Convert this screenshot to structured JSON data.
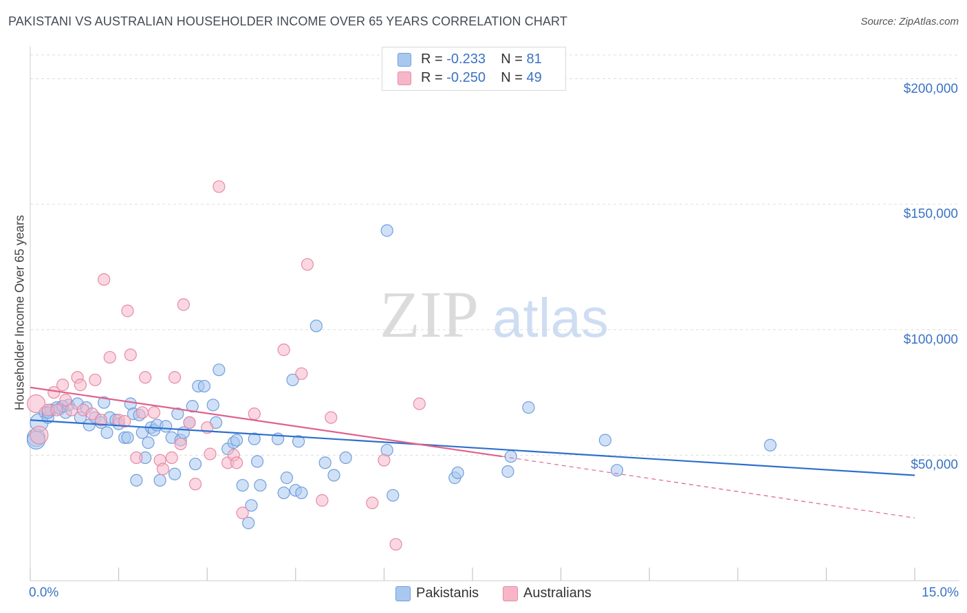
{
  "title": "PAKISTANI VS AUSTRALIAN HOUSEHOLDER INCOME OVER 65 YEARS CORRELATION CHART",
  "source": "Source: ZipAtlas.com",
  "watermark": {
    "zip": "ZIP",
    "atlas": "atlas"
  },
  "legend": {
    "rows": [
      {
        "r_label": "R = ",
        "r_value": "-0.233",
        "n_label": "N = ",
        "n_value": "81",
        "color": "#a9c8f0"
      },
      {
        "r_label": "R = ",
        "r_value": "-0.250",
        "n_label": "N = ",
        "n_value": "49",
        "color": "#f7b6c8"
      }
    ]
  },
  "colors": {
    "blue_fill": "#a9c8f0",
    "blue_stroke": "#6f9edb",
    "blue_line": "#2e6fcc",
    "pink_fill": "#f7b6c8",
    "pink_stroke": "#e58aa6",
    "pink_line": "#e0608a",
    "grid": "#dddddd",
    "tick_text": "#3a72c5"
  },
  "chart_data": {
    "type": "scatter",
    "title": "PAKISTANI VS AUSTRALIAN HOUSEHOLDER INCOME OVER 65 YEARS CORRELATION CHART",
    "xlabel": "",
    "ylabel": "Householder Income Over 65 years",
    "xlim": [
      0,
      15
    ],
    "ylim": [
      0,
      210000
    ],
    "x_tick_labels": [
      "0.0%",
      "15.0%"
    ],
    "y_ticks": [
      50000,
      100000,
      150000,
      200000
    ],
    "y_tick_labels": [
      "$50,000",
      "$100,000",
      "$150,000",
      "$200,000"
    ],
    "grid": true,
    "legend_position": "bottom",
    "series": [
      {
        "name": "Pakistanis",
        "color": "#a9c8f0",
        "trend": {
          "x": [
            0,
            15
          ],
          "y": [
            64000,
            42000
          ]
        },
        "points": [
          [
            0.1,
            57000
          ],
          [
            0.1,
            56000
          ],
          [
            0.15,
            63000
          ],
          [
            0.25,
            67000
          ],
          [
            0.3,
            65000
          ],
          [
            0.35,
            68000
          ],
          [
            0.45,
            69000
          ],
          [
            0.5,
            68500
          ],
          [
            0.6,
            67000
          ],
          [
            0.65,
            70000
          ],
          [
            0.8,
            70500
          ],
          [
            0.85,
            65000
          ],
          [
            0.95,
            69000
          ],
          [
            1.0,
            62000
          ],
          [
            1.1,
            65000
          ],
          [
            1.2,
            63000
          ],
          [
            1.25,
            71000
          ],
          [
            1.3,
            59000
          ],
          [
            1.35,
            65000
          ],
          [
            1.45,
            64000
          ],
          [
            1.5,
            62500
          ],
          [
            1.6,
            57000
          ],
          [
            1.65,
            57000
          ],
          [
            1.7,
            70500
          ],
          [
            1.75,
            66500
          ],
          [
            1.8,
            40000
          ],
          [
            1.85,
            66000
          ],
          [
            1.9,
            59000
          ],
          [
            1.95,
            49000
          ],
          [
            2.0,
            55000
          ],
          [
            2.05,
            61000
          ],
          [
            2.1,
            60000
          ],
          [
            2.15,
            62000
          ],
          [
            2.2,
            40000
          ],
          [
            2.3,
            61500
          ],
          [
            2.4,
            57000
          ],
          [
            2.45,
            42500
          ],
          [
            2.5,
            66500
          ],
          [
            2.55,
            56000
          ],
          [
            2.6,
            59000
          ],
          [
            2.7,
            63000
          ],
          [
            2.75,
            69500
          ],
          [
            2.8,
            46500
          ],
          [
            2.85,
            77500
          ],
          [
            2.95,
            77500
          ],
          [
            3.1,
            70000
          ],
          [
            3.15,
            63000
          ],
          [
            3.2,
            84000
          ],
          [
            3.35,
            52500
          ],
          [
            3.45,
            55000
          ],
          [
            3.5,
            56000
          ],
          [
            3.6,
            38000
          ],
          [
            3.7,
            23000
          ],
          [
            3.75,
            30000
          ],
          [
            3.8,
            56500
          ],
          [
            3.85,
            47500
          ],
          [
            3.9,
            38000
          ],
          [
            4.2,
            56500
          ],
          [
            4.3,
            35000
          ],
          [
            4.35,
            41000
          ],
          [
            4.45,
            80000
          ],
          [
            4.5,
            36000
          ],
          [
            4.6,
            35000
          ],
          [
            4.55,
            55500
          ],
          [
            4.85,
            101500
          ],
          [
            5.0,
            47000
          ],
          [
            5.15,
            42000
          ],
          [
            5.35,
            49000
          ],
          [
            6.05,
            139500
          ],
          [
            6.05,
            52000
          ],
          [
            6.15,
            34000
          ],
          [
            7.2,
            41000
          ],
          [
            7.25,
            43000
          ],
          [
            8.1,
            43500
          ],
          [
            8.15,
            49500
          ],
          [
            8.45,
            69000
          ],
          [
            9.75,
            56000
          ],
          [
            9.95,
            44000
          ],
          [
            12.55,
            54000
          ],
          [
            0.3,
            67000
          ],
          [
            0.55,
            69500
          ]
        ]
      },
      {
        "name": "Australians",
        "color": "#f7b6c8",
        "trend": {
          "x": [
            0,
            8
          ],
          "y": [
            77000,
            49500
          ]
        },
        "trend_dashed": {
          "x": [
            8,
            15
          ],
          "y": [
            49500,
            25000
          ]
        },
        "points": [
          [
            0.1,
            70500
          ],
          [
            0.15,
            58000
          ],
          [
            0.3,
            68000
          ],
          [
            0.4,
            75000
          ],
          [
            0.45,
            68000
          ],
          [
            0.55,
            78000
          ],
          [
            0.6,
            72000
          ],
          [
            0.7,
            68000
          ],
          [
            0.8,
            81000
          ],
          [
            0.85,
            78000
          ],
          [
            0.9,
            68000
          ],
          [
            1.05,
            66500
          ],
          [
            1.1,
            80000
          ],
          [
            1.2,
            64000
          ],
          [
            1.25,
            120000
          ],
          [
            1.35,
            89000
          ],
          [
            1.5,
            64000
          ],
          [
            1.6,
            63500
          ],
          [
            1.65,
            107500
          ],
          [
            1.7,
            90000
          ],
          [
            1.8,
            49000
          ],
          [
            1.9,
            67000
          ],
          [
            1.95,
            81000
          ],
          [
            2.1,
            67000
          ],
          [
            2.2,
            48000
          ],
          [
            2.25,
            44500
          ],
          [
            2.4,
            49000
          ],
          [
            2.45,
            81000
          ],
          [
            2.55,
            54500
          ],
          [
            2.6,
            110000
          ],
          [
            2.7,
            63000
          ],
          [
            2.8,
            38500
          ],
          [
            3.0,
            61000
          ],
          [
            3.05,
            50500
          ],
          [
            3.2,
            157000
          ],
          [
            3.35,
            47000
          ],
          [
            3.45,
            50000
          ],
          [
            3.5,
            47000
          ],
          [
            3.6,
            27000
          ],
          [
            3.8,
            66500
          ],
          [
            4.3,
            92000
          ],
          [
            4.6,
            82500
          ],
          [
            4.7,
            126000
          ],
          [
            4.95,
            32000
          ],
          [
            5.1,
            65000
          ],
          [
            5.8,
            31000
          ],
          [
            6.0,
            48000
          ],
          [
            6.2,
            14500
          ],
          [
            6.6,
            70500
          ]
        ]
      }
    ]
  }
}
